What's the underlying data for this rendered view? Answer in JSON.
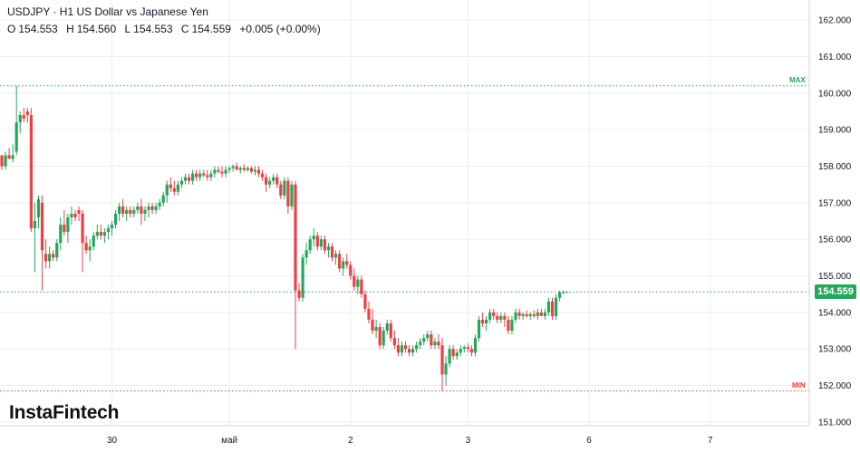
{
  "header": {
    "title": "USDJPY · H1 US Dollar vs Japanese Yen",
    "ohlc": [
      {
        "k": "O",
        "v": "154.553"
      },
      {
        "k": "H",
        "v": "154.560"
      },
      {
        "k": "L",
        "v": "154.553"
      },
      {
        "k": "C",
        "v": "154.559"
      }
    ],
    "change": "+0.005 (+0.00%)"
  },
  "brand": "InstaFintech",
  "colors": {
    "up": "#26a65b",
    "down": "#ef3e44",
    "max_line": "#26a65b",
    "min_line": "#ef3e44",
    "grid": "#eeeeee"
  },
  "chart_data": {
    "type": "candlestick",
    "ylim": [
      150.7,
      162.4
    ],
    "y_ticks": [
      "151.000",
      "152.000",
      "153.000",
      "154.000",
      "155.000",
      "156.000",
      "157.000",
      "158.000",
      "159.000",
      "160.000",
      "161.000",
      "162.000"
    ],
    "x_ticks": [
      {
        "label": "30",
        "index": 30
      },
      {
        "label": "май",
        "index": 62
      },
      {
        "label": "2",
        "index": 95
      },
      {
        "label": "3",
        "index": 127
      },
      {
        "label": "6",
        "index": 160
      },
      {
        "label": "7",
        "index": 193
      }
    ],
    "max": {
      "label": "MAX",
      "value": 160.2
    },
    "min": {
      "label": "MIN",
      "value": 151.85
    },
    "last": {
      "value": 154.559,
      "label": "154.559"
    },
    "candles": [
      [
        158.3,
        158.2,
        157.9,
        158.0
      ],
      [
        158.0,
        158.4,
        157.9,
        158.3
      ],
      [
        158.3,
        158.5,
        158.2,
        158.2
      ],
      [
        158.2,
        158.6,
        158.1,
        158.3
      ],
      [
        158.4,
        160.2,
        158.3,
        159.2
      ],
      [
        159.2,
        159.5,
        158.9,
        159.4
      ],
      [
        159.4,
        159.6,
        159.2,
        159.3
      ],
      [
        159.5,
        159.6,
        159.2,
        159.4
      ],
      [
        159.4,
        159.6,
        156.2,
        156.3
      ],
      [
        156.3,
        157.0,
        155.1,
        156.5
      ],
      [
        156.6,
        157.2,
        156.3,
        157.1
      ],
      [
        157.0,
        157.2,
        154.6,
        155.7
      ],
      [
        155.6,
        156.0,
        155.2,
        155.4
      ],
      [
        155.4,
        155.8,
        155.2,
        155.6
      ],
      [
        155.6,
        155.7,
        155.4,
        155.5
      ],
      [
        155.5,
        156.0,
        155.4,
        155.9
      ],
      [
        155.9,
        156.6,
        155.7,
        156.4
      ],
      [
        156.4,
        156.8,
        156.1,
        156.2
      ],
      [
        156.2,
        156.7,
        155.9,
        156.6
      ],
      [
        156.6,
        156.9,
        156.4,
        156.7
      ],
      [
        156.7,
        156.8,
        156.5,
        156.6
      ],
      [
        156.8,
        156.9,
        156.5,
        156.7
      ],
      [
        156.7,
        156.8,
        155.1,
        155.9
      ],
      [
        155.9,
        156.1,
        155.6,
        155.7
      ],
      [
        155.7,
        156.0,
        155.4,
        155.8
      ],
      [
        155.8,
        156.2,
        155.7,
        156.1
      ],
      [
        156.1,
        156.4,
        156.0,
        156.2
      ],
      [
        156.2,
        156.4,
        156.0,
        156.1
      ],
      [
        156.1,
        156.3,
        155.9,
        156.2
      ],
      [
        156.2,
        156.4,
        156.0,
        156.3
      ],
      [
        156.3,
        156.5,
        156.1,
        156.4
      ],
      [
        156.4,
        156.8,
        156.3,
        156.7
      ],
      [
        156.7,
        157.0,
        156.5,
        156.9
      ],
      [
        156.9,
        157.1,
        156.6,
        156.7
      ],
      [
        156.7,
        156.9,
        156.5,
        156.8
      ],
      [
        156.8,
        156.9,
        156.6,
        156.7
      ],
      [
        156.7,
        156.9,
        156.6,
        156.8
      ],
      [
        156.8,
        157.0,
        156.7,
        156.9
      ],
      [
        156.9,
        157.1,
        156.4,
        156.7
      ],
      [
        156.7,
        156.9,
        156.5,
        156.8
      ],
      [
        156.8,
        157.0,
        156.6,
        156.9
      ],
      [
        156.9,
        157.0,
        156.7,
        156.8
      ],
      [
        156.8,
        157.0,
        156.7,
        156.9
      ],
      [
        156.9,
        157.1,
        156.8,
        157.0
      ],
      [
        157.0,
        157.3,
        156.9,
        157.2
      ],
      [
        157.2,
        157.6,
        157.0,
        157.5
      ],
      [
        157.5,
        157.7,
        157.3,
        157.4
      ],
      [
        157.4,
        157.6,
        157.2,
        157.3
      ],
      [
        157.3,
        157.6,
        157.2,
        157.5
      ],
      [
        157.5,
        157.7,
        157.4,
        157.6
      ],
      [
        157.6,
        157.8,
        157.5,
        157.7
      ],
      [
        157.7,
        157.8,
        157.5,
        157.6
      ],
      [
        157.6,
        157.9,
        157.5,
        157.8
      ],
      [
        157.8,
        157.9,
        157.6,
        157.7
      ],
      [
        157.7,
        157.9,
        157.6,
        157.8
      ],
      [
        157.8,
        157.9,
        157.7,
        157.75
      ],
      [
        157.75,
        157.9,
        157.6,
        157.7
      ],
      [
        157.7,
        157.9,
        157.6,
        157.8
      ],
      [
        157.8,
        158.0,
        157.7,
        157.9
      ],
      [
        157.9,
        158.0,
        157.8,
        157.85
      ],
      [
        157.85,
        158.0,
        157.7,
        157.8
      ],
      [
        157.8,
        158.0,
        157.7,
        157.9
      ],
      [
        157.9,
        158.0,
        157.8,
        157.95
      ],
      [
        157.95,
        158.05,
        157.85,
        158.0
      ],
      [
        158.0,
        158.1,
        157.9,
        157.9
      ],
      [
        157.9,
        158.0,
        157.8,
        157.95
      ],
      [
        157.95,
        158.05,
        157.85,
        157.9
      ],
      [
        157.9,
        158.0,
        157.85,
        157.95
      ],
      [
        157.95,
        158.0,
        157.8,
        157.85
      ],
      [
        157.85,
        158.0,
        157.75,
        157.9
      ],
      [
        157.9,
        158.0,
        157.7,
        157.8
      ],
      [
        157.8,
        157.9,
        157.6,
        157.7
      ],
      [
        157.7,
        157.8,
        157.3,
        157.5
      ],
      [
        157.5,
        157.7,
        157.4,
        157.6
      ],
      [
        157.6,
        157.8,
        157.5,
        157.7
      ],
      [
        157.7,
        157.8,
        157.4,
        157.5
      ],
      [
        157.5,
        157.6,
        157.1,
        157.2
      ],
      [
        157.2,
        157.7,
        157.1,
        157.6
      ],
      [
        157.6,
        157.7,
        156.7,
        156.9
      ],
      [
        156.9,
        157.6,
        156.8,
        157.5
      ],
      [
        157.5,
        157.6,
        153.0,
        154.6
      ],
      [
        154.6,
        154.8,
        154.3,
        154.4
      ],
      [
        154.4,
        155.6,
        154.3,
        155.5
      ],
      [
        155.5,
        155.9,
        155.3,
        155.7
      ],
      [
        155.7,
        156.1,
        155.6,
        156.0
      ],
      [
        156.0,
        156.3,
        155.8,
        156.1
      ],
      [
        156.1,
        156.2,
        155.7,
        155.8
      ],
      [
        155.8,
        156.1,
        155.7,
        156.0
      ],
      [
        156.0,
        156.1,
        155.6,
        155.7
      ],
      [
        155.7,
        155.9,
        155.5,
        155.8
      ],
      [
        155.8,
        155.9,
        155.4,
        155.5
      ],
      [
        155.5,
        155.7,
        155.3,
        155.6
      ],
      [
        155.6,
        155.7,
        155.1,
        155.2
      ],
      [
        155.2,
        155.5,
        155.0,
        155.4
      ],
      [
        155.4,
        155.6,
        155.2,
        155.3
      ],
      [
        155.3,
        155.4,
        154.9,
        155.0
      ],
      [
        155.0,
        155.2,
        154.6,
        154.7
      ],
      [
        154.7,
        155.0,
        154.5,
        154.9
      ],
      [
        154.9,
        155.0,
        154.4,
        154.5
      ],
      [
        154.5,
        154.6,
        154.0,
        154.1
      ],
      [
        154.1,
        154.3,
        153.7,
        153.8
      ],
      [
        153.8,
        154.1,
        153.4,
        153.5
      ],
      [
        153.5,
        153.8,
        153.3,
        153.6
      ],
      [
        153.6,
        153.7,
        153.0,
        153.1
      ],
      [
        153.1,
        153.6,
        153.0,
        153.5
      ],
      [
        153.5,
        153.8,
        153.4,
        153.7
      ],
      [
        153.7,
        153.8,
        153.2,
        153.3
      ],
      [
        153.3,
        153.5,
        153.0,
        153.1
      ],
      [
        153.1,
        153.3,
        152.8,
        152.9
      ],
      [
        152.9,
        153.2,
        152.8,
        153.1
      ],
      [
        153.1,
        153.2,
        152.9,
        153.0
      ],
      [
        153.0,
        153.1,
        152.8,
        152.9
      ],
      [
        152.9,
        153.1,
        152.8,
        153.0
      ],
      [
        153.0,
        153.2,
        152.9,
        153.1
      ],
      [
        153.1,
        153.3,
        153.0,
        153.2
      ],
      [
        153.2,
        153.4,
        153.1,
        153.3
      ],
      [
        153.3,
        153.5,
        153.2,
        153.4
      ],
      [
        153.4,
        153.5,
        153.0,
        153.1
      ],
      [
        153.1,
        153.3,
        153.0,
        153.2
      ],
      [
        153.2,
        153.4,
        153.0,
        153.1
      ],
      [
        153.1,
        153.3,
        151.85,
        152.3
      ],
      [
        152.3,
        152.8,
        152.0,
        152.6
      ],
      [
        152.6,
        153.1,
        152.5,
        153.0
      ],
      [
        153.0,
        153.1,
        152.7,
        152.8
      ],
      [
        152.8,
        153.0,
        152.7,
        152.9
      ],
      [
        152.9,
        153.1,
        152.8,
        153.0
      ],
      [
        153.0,
        153.1,
        152.9,
        153.05
      ],
      [
        153.05,
        153.15,
        152.9,
        153.0
      ],
      [
        153.0,
        153.1,
        152.8,
        152.9
      ],
      [
        152.9,
        153.4,
        152.8,
        153.3
      ],
      [
        153.3,
        153.9,
        153.2,
        153.8
      ],
      [
        153.8,
        154.0,
        153.6,
        153.7
      ],
      [
        153.7,
        153.9,
        153.5,
        153.8
      ],
      [
        153.8,
        154.1,
        153.7,
        154.0
      ],
      [
        154.0,
        154.1,
        153.8,
        153.9
      ],
      [
        153.9,
        154.0,
        153.7,
        153.8
      ],
      [
        153.8,
        154.0,
        153.7,
        153.9
      ],
      [
        153.9,
        154.0,
        153.6,
        153.8
      ],
      [
        153.8,
        153.9,
        153.4,
        153.5
      ],
      [
        153.5,
        153.9,
        153.4,
        153.8
      ],
      [
        153.8,
        154.1,
        153.7,
        154.0
      ],
      [
        154.0,
        154.1,
        153.8,
        153.9
      ],
      [
        153.9,
        154.0,
        153.8,
        153.95
      ],
      [
        153.95,
        154.05,
        153.85,
        153.9
      ],
      [
        153.9,
        154.0,
        153.8,
        153.95
      ],
      [
        153.95,
        154.05,
        153.85,
        153.9
      ],
      [
        153.9,
        154.1,
        153.8,
        154.0
      ],
      [
        154.0,
        154.1,
        153.9,
        153.9
      ],
      [
        153.9,
        154.1,
        153.8,
        154.0
      ],
      [
        154.0,
        154.4,
        153.9,
        154.3
      ],
      [
        154.3,
        154.4,
        153.8,
        153.9
      ],
      [
        153.9,
        154.5,
        153.8,
        154.4
      ],
      [
        154.4,
        154.6,
        154.3,
        154.55
      ],
      [
        154.55,
        154.6,
        154.5,
        154.56
      ],
      [
        154.553,
        154.56,
        154.553,
        154.559
      ]
    ]
  }
}
